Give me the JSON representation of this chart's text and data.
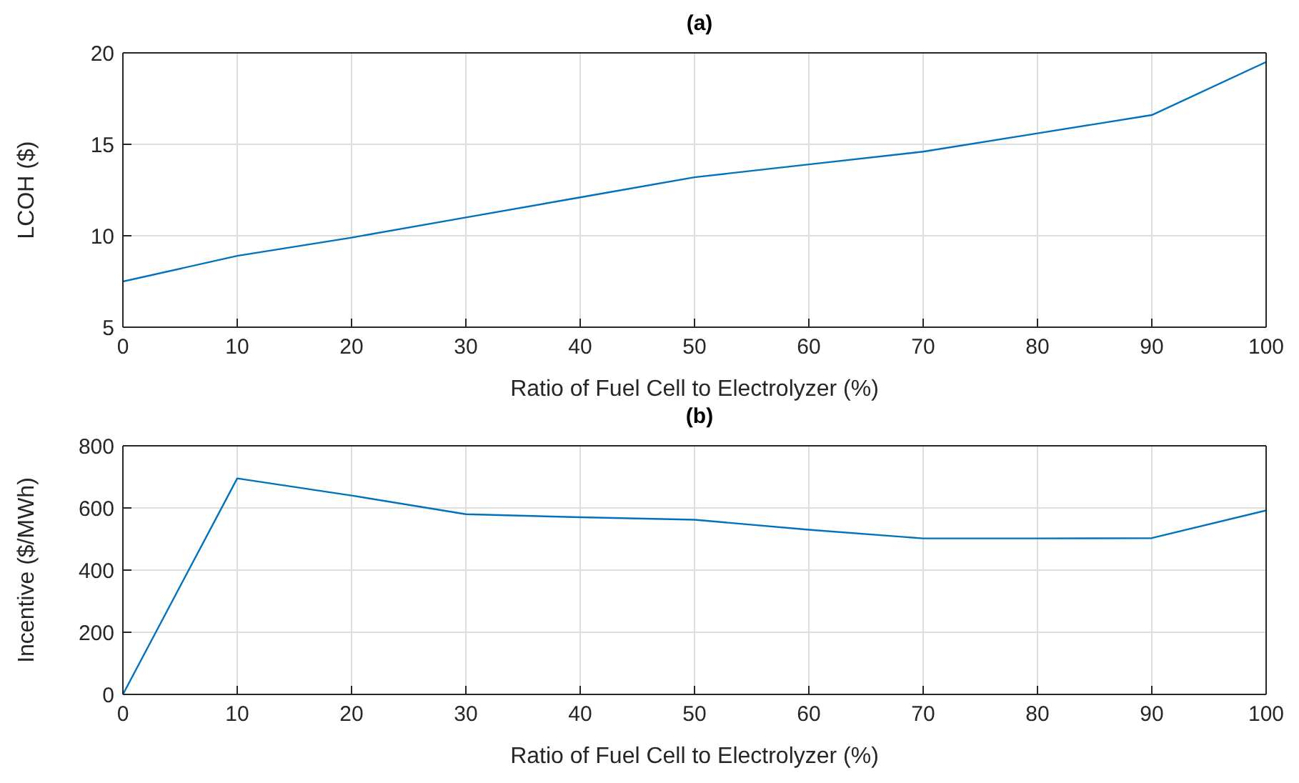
{
  "chart_data": [
    {
      "type": "line",
      "title": "(a)",
      "xlabel": "Ratio of Fuel Cell to Electrolyzer (%)",
      "ylabel": "LCOH ($)",
      "x": [
        0,
        10,
        20,
        30,
        40,
        50,
        60,
        70,
        80,
        90,
        100
      ],
      "series": [
        {
          "color": "#0072bd",
          "values": [
            7.5,
            8.9,
            9.9,
            11.0,
            12.1,
            13.2,
            13.9,
            14.6,
            15.6,
            16.6,
            19.5
          ]
        }
      ],
      "xlim": [
        0,
        100
      ],
      "xticks": [
        0,
        10,
        20,
        30,
        40,
        50,
        60,
        70,
        80,
        90,
        100
      ],
      "ylim": [
        5,
        20
      ],
      "yticks": [
        5,
        10,
        15,
        20
      ],
      "grid": true
    },
    {
      "type": "line",
      "title": "(b)",
      "xlabel": "Ratio of Fuel Cell to Electrolyzer (%)",
      "ylabel": "Incentive ($/MWh)",
      "x": [
        0,
        10,
        20,
        30,
        40,
        50,
        60,
        70,
        80,
        90,
        100
      ],
      "series": [
        {
          "color": "#0072bd",
          "values": [
            0,
            695,
            640,
            580,
            570,
            562,
            530,
            502,
            502,
            503,
            592
          ]
        }
      ],
      "xlim": [
        0,
        100
      ],
      "xticks": [
        0,
        10,
        20,
        30,
        40,
        50,
        60,
        70,
        80,
        90,
        100
      ],
      "ylim": [
        0,
        800
      ],
      "yticks": [
        0,
        200,
        400,
        600,
        800
      ],
      "grid": true
    }
  ]
}
